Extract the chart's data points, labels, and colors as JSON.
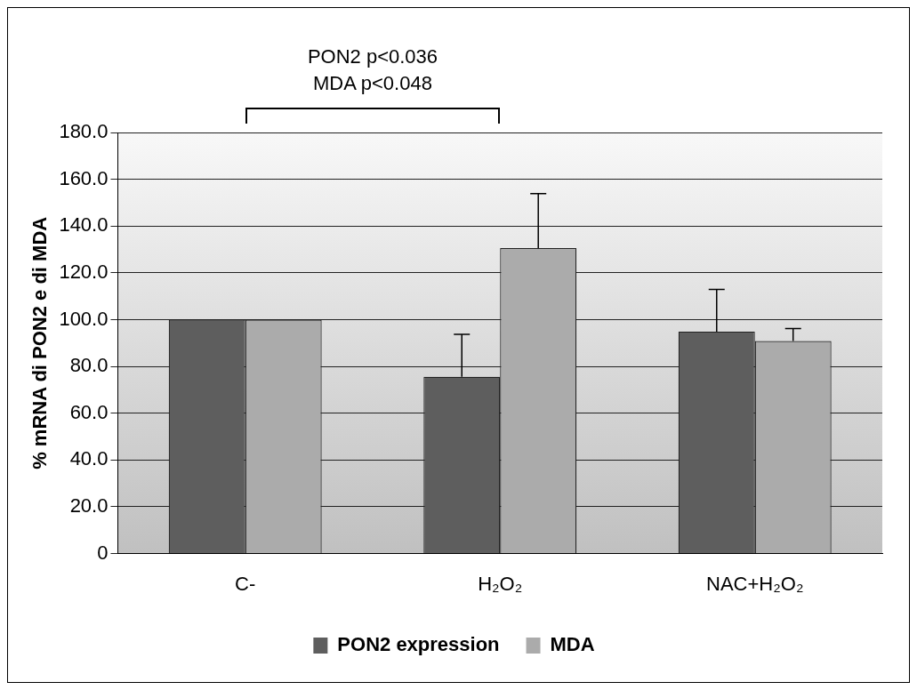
{
  "chart_data": {
    "type": "bar",
    "ylabel": "% mRNA di PON2 e di MDA",
    "categories": [
      "C-",
      "H₂O₂",
      "NAC+H₂O₂"
    ],
    "series": [
      {
        "name": "PON2 expression",
        "color": "#5e5e5e",
        "values": [
          100,
          75.6,
          94.9
        ],
        "errors": [
          null,
          18.1,
          18
        ]
      },
      {
        "name": "MDA",
        "color": "#ababab",
        "values": [
          100,
          130.6,
          90.9
        ],
        "errors": [
          null,
          23.3,
          5.3
        ]
      }
    ],
    "ylim": [
      0,
      180
    ],
    "yticks": [
      0,
      {
        "value": 20,
        "label": "20.0"
      },
      {
        "value": 40,
        "label": "40.0"
      },
      {
        "value": 60,
        "label": "60.0"
      },
      {
        "value": 80,
        "label": "80.0"
      },
      {
        "value": 100,
        "label": "100.0"
      },
      {
        "value": 120,
        "label": "120.0"
      },
      {
        "value": 140,
        "label": "140.0"
      },
      {
        "value": 160,
        "label": "160.0"
      },
      {
        "value": 180,
        "label": "180.0"
      }
    ],
    "grid": "y",
    "legend": "bottom",
    "annotations": [
      "PON2 p<0.036\nMDA p<0.048"
    ]
  }
}
